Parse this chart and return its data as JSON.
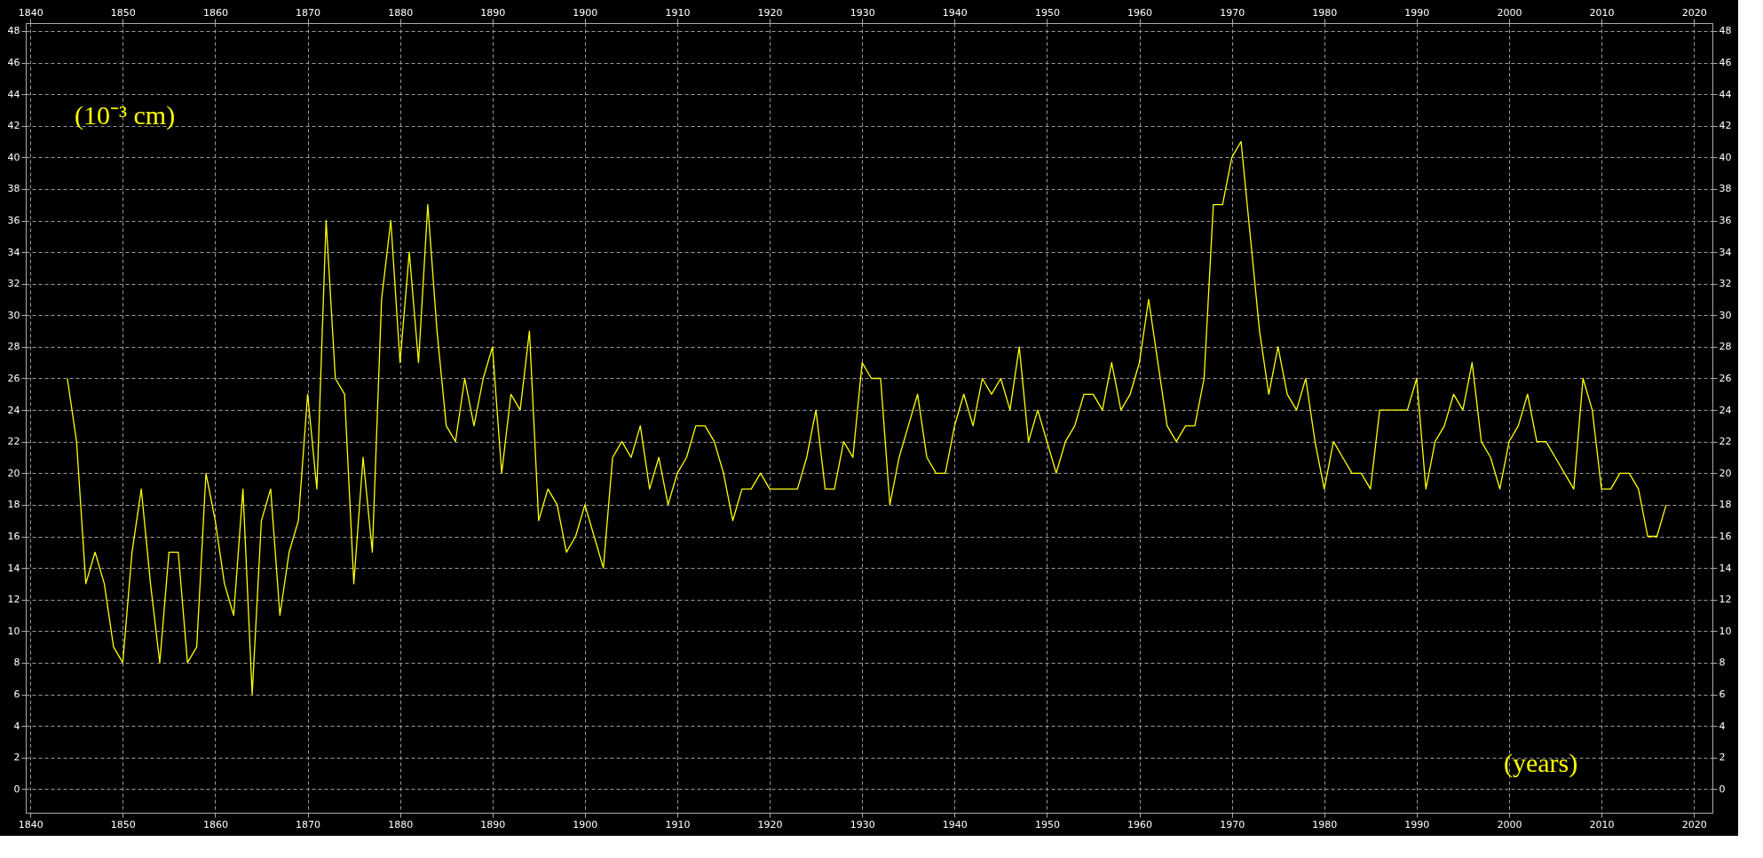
{
  "chart_data": {
    "type": "line",
    "xlabel": "(years)",
    "ylabel": "(10⁻³ cm)",
    "x": [
      1844,
      1845,
      1846,
      1847,
      1848,
      1849,
      1850,
      1851,
      1852,
      1853,
      1854,
      1855,
      1856,
      1857,
      1858,
      1859,
      1860,
      1861,
      1862,
      1863,
      1864,
      1865,
      1866,
      1867,
      1868,
      1869,
      1870,
      1871,
      1872,
      1873,
      1874,
      1875,
      1876,
      1877,
      1878,
      1879,
      1880,
      1881,
      1882,
      1883,
      1884,
      1885,
      1886,
      1887,
      1888,
      1889,
      1890,
      1891,
      1892,
      1893,
      1894,
      1895,
      1896,
      1897,
      1898,
      1899,
      1900,
      1901,
      1902,
      1903,
      1904,
      1905,
      1906,
      1907,
      1908,
      1909,
      1910,
      1911,
      1912,
      1913,
      1914,
      1915,
      1916,
      1917,
      1918,
      1919,
      1920,
      1921,
      1922,
      1923,
      1924,
      1925,
      1926,
      1927,
      1928,
      1929,
      1930,
      1931,
      1932,
      1933,
      1934,
      1935,
      1936,
      1937,
      1938,
      1939,
      1940,
      1941,
      1942,
      1943,
      1944,
      1945,
      1946,
      1947,
      1948,
      1949,
      1950,
      1951,
      1952,
      1953,
      1954,
      1955,
      1956,
      1957,
      1958,
      1959,
      1960,
      1961,
      1962,
      1963,
      1964,
      1965,
      1966,
      1967,
      1968,
      1969,
      1970,
      1971,
      1972,
      1973,
      1974,
      1975,
      1976,
      1977,
      1978,
      1979,
      1980,
      1981,
      1982,
      1983,
      1984,
      1985,
      1986,
      1987,
      1988,
      1989,
      1990,
      1991,
      1992,
      1993,
      1994,
      1995,
      1996,
      1997,
      1998,
      1999,
      2000,
      2001,
      2002,
      2003,
      2004,
      2005,
      2006,
      2007,
      2008,
      2009,
      2010,
      2011,
      2012,
      2013,
      2014,
      2015,
      2016,
      2017
    ],
    "values": [
      26,
      22,
      13,
      15,
      13,
      9,
      8,
      15,
      19,
      13,
      8,
      15,
      15,
      8,
      9,
      20,
      17,
      13,
      11,
      19,
      6,
      17,
      19,
      11,
      15,
      17,
      25,
      19,
      36,
      26,
      25,
      13,
      21,
      15,
      31,
      36,
      27,
      34,
      27,
      37,
      29,
      23,
      22,
      26,
      23,
      26,
      28,
      20,
      25,
      24,
      29,
      17,
      19,
      18,
      15,
      16,
      18,
      16,
      14,
      21,
      22,
      21,
      23,
      19,
      21,
      18,
      20,
      21,
      23,
      23,
      22,
      20,
      17,
      19,
      19,
      20,
      19,
      19,
      19,
      19,
      21,
      24,
      19,
      19,
      22,
      21,
      27,
      26,
      26,
      18,
      21,
      23,
      25,
      21,
      20,
      20,
      23,
      25,
      23,
      26,
      25,
      26,
      24,
      28,
      22,
      24,
      22,
      20,
      22,
      23,
      25,
      25,
      24,
      27,
      24,
      25,
      27,
      31,
      27,
      23,
      22,
      23,
      23,
      26,
      37,
      37,
      40,
      41,
      35,
      29,
      25,
      28,
      25,
      24,
      26,
      22,
      19,
      22,
      21,
      20,
      20,
      19,
      24,
      24,
      24,
      24,
      26,
      19,
      22,
      23,
      25,
      24,
      27,
      22,
      21,
      19,
      22,
      23,
      25,
      22,
      22,
      21,
      20,
      19,
      26,
      24,
      19,
      19,
      20,
      20,
      19,
      16,
      16,
      18
    ],
    "color": "#ffff00",
    "xlim": [
      1839.5,
      2022
    ],
    "xticks": [
      1840,
      1850,
      1860,
      1870,
      1880,
      1890,
      1900,
      1910,
      1920,
      1930,
      1940,
      1950,
      1960,
      1970,
      1980,
      1990,
      2000,
      2010,
      2020
    ],
    "x2lim": [
      1839.5,
      2022
    ],
    "x2ticks": [
      1840,
      1850,
      1860,
      1870,
      1880,
      1890,
      1900,
      1910,
      1920,
      1930,
      1940,
      1950,
      1960,
      1970,
      1980,
      1990,
      2000,
      2010,
      2020
    ],
    "ylim": [
      -1.5,
      48.5
    ],
    "yticks": [
      0,
      2,
      4,
      6,
      8,
      10,
      12,
      14,
      16,
      18,
      20,
      22,
      24,
      26,
      28,
      30,
      32,
      34,
      36,
      38,
      40,
      42,
      44,
      46,
      48
    ],
    "y2lim": [
      -1.5,
      48.5
    ],
    "y2ticks": [
      0,
      2,
      4,
      6,
      8,
      10,
      12,
      14,
      16,
      18,
      20,
      22,
      24,
      26,
      28,
      30,
      32,
      34,
      36,
      38,
      40,
      42,
      44,
      46,
      48
    ],
    "grid": true
  }
}
